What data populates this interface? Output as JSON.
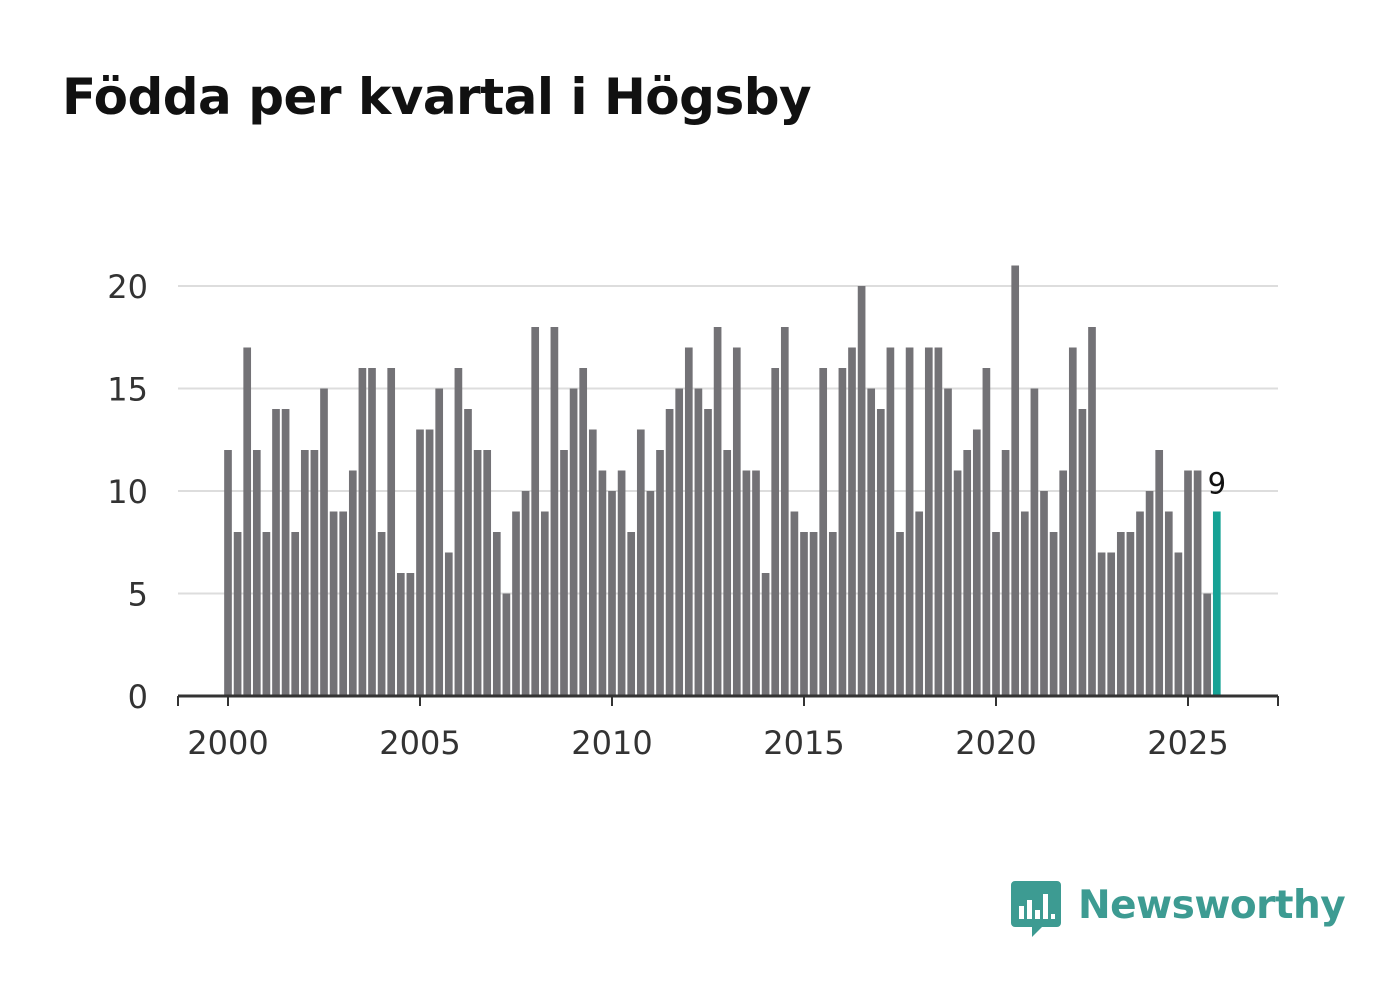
{
  "title": "Födda per kvartal i Högsby",
  "brand": {
    "name": "Newsworthy"
  },
  "colors": {
    "bar": "#737276",
    "highlight": "#16a295",
    "grid": "#dddddd",
    "axis": "#333333",
    "text": "#333333",
    "brand": "#3d9b92"
  },
  "chart_data": {
    "type": "bar",
    "title": "Födda per kvartal i Högsby",
    "xlabel": "",
    "ylabel": "",
    "x_start_year": 2000,
    "periods_per_year": 4,
    "values": [
      12,
      8,
      17,
      12,
      8,
      14,
      14,
      8,
      12,
      12,
      15,
      9,
      9,
      11,
      16,
      16,
      8,
      16,
      6,
      6,
      13,
      13,
      15,
      7,
      16,
      14,
      12,
      12,
      8,
      5,
      9,
      10,
      18,
      9,
      18,
      12,
      15,
      16,
      13,
      11,
      10,
      11,
      8,
      13,
      10,
      12,
      14,
      15,
      17,
      15,
      14,
      18,
      12,
      17,
      11,
      11,
      6,
      16,
      18,
      9,
      8,
      8,
      16,
      8,
      16,
      17,
      20,
      15,
      14,
      17,
      8,
      17,
      9,
      17,
      17,
      15,
      11,
      12,
      13,
      16,
      8,
      12,
      21,
      9,
      15,
      10,
      8,
      11,
      17,
      14,
      18,
      7,
      7,
      8,
      8,
      9,
      10,
      12,
      9,
      7,
      11,
      11,
      5,
      9
    ],
    "highlight_last": true,
    "last_value_label": "9",
    "ylim": [
      0,
      21
    ],
    "yticks": [
      0,
      5,
      10,
      15,
      20
    ],
    "xlim": [
      1999.75,
      2027.25
    ],
    "xticks": [
      2000,
      2005,
      2010,
      2015,
      2020,
      2025
    ],
    "grid": true
  }
}
